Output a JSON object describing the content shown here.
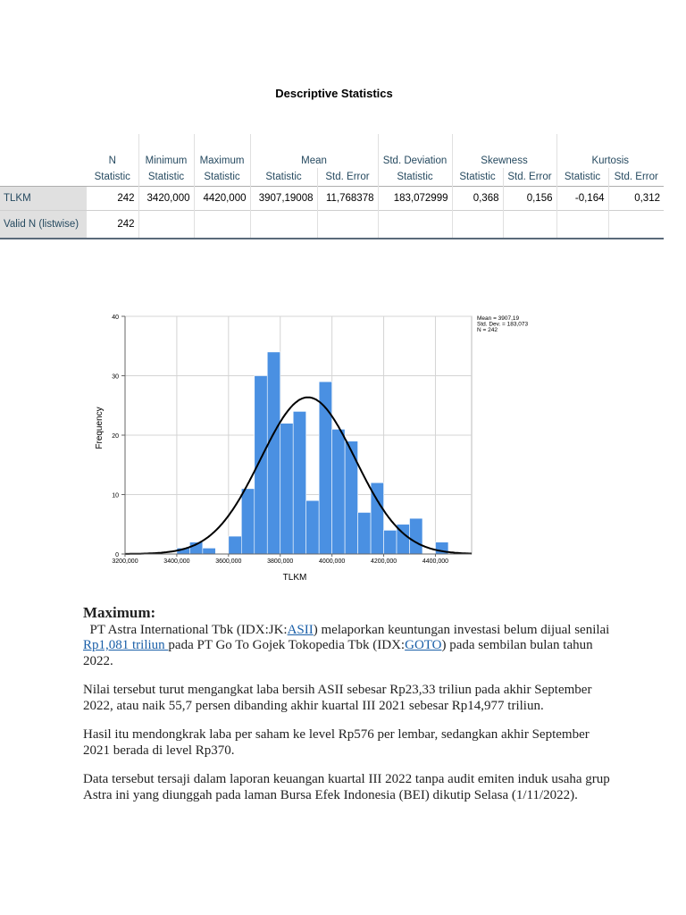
{
  "table": {
    "title": "Descriptive Statistics",
    "headers1": [
      "N",
      "Minimum",
      "Maximum",
      "Mean",
      "Std. Deviation",
      "Skewness",
      "Kurtosis"
    ],
    "headers2": [
      "Statistic",
      "Statistic",
      "Statistic",
      "Statistic",
      "Std. Error",
      "Statistic",
      "Statistic",
      "Std. Error",
      "Statistic",
      "Std. Error"
    ],
    "rows": [
      {
        "label": "TLKM",
        "values": [
          "242",
          "3420,000",
          "4420,000",
          "3907,19008",
          "11,768378",
          "183,072999",
          "0,368",
          "0,156",
          "-0,164",
          "0,312"
        ]
      },
      {
        "label": "Valid N (listwise)",
        "values": [
          "242"
        ]
      }
    ]
  },
  "chart_data": {
    "type": "bar",
    "xlabel": "TLKM",
    "ylabel": "Frequency",
    "xlim": [
      3200,
      4540
    ],
    "ylim": [
      0,
      40
    ],
    "xticks": [
      "3200,000",
      "3400,000",
      "3600,000",
      "3800,000",
      "4000,000",
      "4200,000",
      "4400,000"
    ],
    "xtick_values": [
      3200,
      3400,
      3600,
      3800,
      4000,
      4200,
      4400
    ],
    "yticks": [
      0,
      10,
      20,
      30,
      40
    ],
    "bin_width": 50,
    "bin_starts": [
      3400,
      3450,
      3500,
      3550,
      3600,
      3650,
      3700,
      3750,
      3800,
      3850,
      3900,
      3950,
      4000,
      4050,
      4100,
      4150,
      4200,
      4250,
      4300,
      4350,
      4400
    ],
    "values": [
      1,
      2,
      1,
      0,
      3,
      11,
      30,
      34,
      22,
      24,
      9,
      29,
      21,
      19,
      7,
      12,
      4,
      5,
      6,
      0,
      2
    ],
    "normal_curve": {
      "mean": 3907.19,
      "std": 183.073,
      "n": 242
    },
    "legend": [
      "Mean = 3907,19",
      "Std. Dev. = 183,073",
      "N = 242"
    ],
    "legend_position": "top-right",
    "grid": true
  },
  "article": {
    "heading": "Maximum:",
    "p1": {
      "t1": "PT Astra International Tbk (IDX:JK:",
      "link1": "ASII",
      "t2": ") melaporkan keuntungan investasi belum dijual senilai ",
      "link2": "Rp1,081 triliun ",
      "t3": "pada PT Go To Gojek Tokopedia Tbk (IDX:",
      "link3": "GOTO",
      "t4": ") pada sembilan bulan tahun 2022."
    },
    "p2": "Nilai tersebut turut mengangkat laba bersih ASII sebesar Rp23,33 triliun pada akhir September 2022, atau naik 55,7 persen dibanding akhir kuartal III 2021 sebesar Rp14,977 triliun.",
    "p3": "Hasil itu mendongkrak laba per saham ke level Rp576 per lembar, sedangkan akhir September 2021 berada di level Rp370.",
    "p4": "Data tersebut tersaji dalam laporan keuangan kuartal III 2022 tanpa audit emiten induk usaha grup Astra ini yang diunggah pada laman Bursa Efek Indonesia (BEI) dikutip Selasa (1/11/2022)."
  }
}
